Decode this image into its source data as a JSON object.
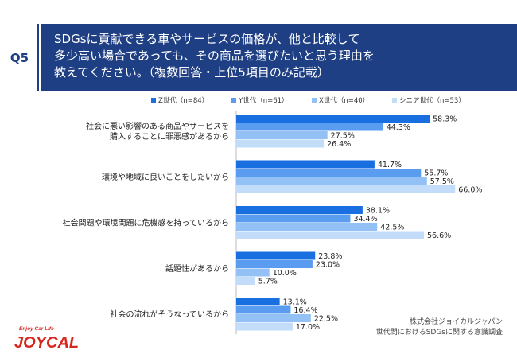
{
  "question_id": "Q5",
  "title_lines": [
    "SDGsに貢献できる車やサービスの価格が、他と比較して",
    "多少高い場合であっても、その商品を選びたいと思う理由を",
    "教えてください。（複数回答・上位5項目のみ記載）"
  ],
  "chart_data": {
    "type": "bar",
    "orientation": "horizontal",
    "categories": [
      [
        "社会に悪い影響のある商品やサービスを",
        "購入することに罪悪感があるから"
      ],
      [
        "環境や地域に良いことをしたいから"
      ],
      [
        "社会問題や環境問題に危機感を持っているから"
      ],
      [
        "話題性があるから"
      ],
      [
        "社会の流れがそうなっているから"
      ]
    ],
    "series": [
      {
        "name": "Z世代（n=84）",
        "color": "#1a6fe0",
        "values": [
          58.3,
          41.7,
          38.1,
          23.8,
          13.1
        ],
        "labels": [
          "58.3%",
          "41.7%",
          "38.1%",
          "23.8%",
          "13.1%"
        ]
      },
      {
        "name": "Y世代（n=61）",
        "color": "#5a9cf0",
        "values": [
          44.3,
          55.7,
          34.4,
          23.0,
          16.4
        ],
        "labels": [
          "44.3%",
          "55.7%",
          "34.4%",
          "23.0%",
          "16.4%"
        ]
      },
      {
        "name": "X世代（n=40）",
        "color": "#93c0f5",
        "values": [
          27.5,
          57.5,
          42.5,
          10.0,
          22.5
        ],
        "labels": [
          "27.5%",
          "57.5%",
          "42.5%",
          "10.0%",
          "22.5%"
        ]
      },
      {
        "name": "シニア世代（n=53）",
        "color": "#c3dcfa",
        "values": [
          26.4,
          66.0,
          56.6,
          5.7,
          17.0
        ],
        "labels": [
          "26.4%",
          "66.0%",
          "56.6%",
          "5.7%",
          "17.0%"
        ]
      }
    ],
    "xlim": [
      0,
      100
    ],
    "legend_position": "top-right",
    "grid": false
  },
  "source_lines": [
    "株式会社ジョイカルジャパン",
    "世代間におけるSDGsに関する意識調査"
  ],
  "logo": {
    "tagline": "Enjoy Car Life",
    "text": "JOYCAL",
    "color": "#d7261e"
  }
}
